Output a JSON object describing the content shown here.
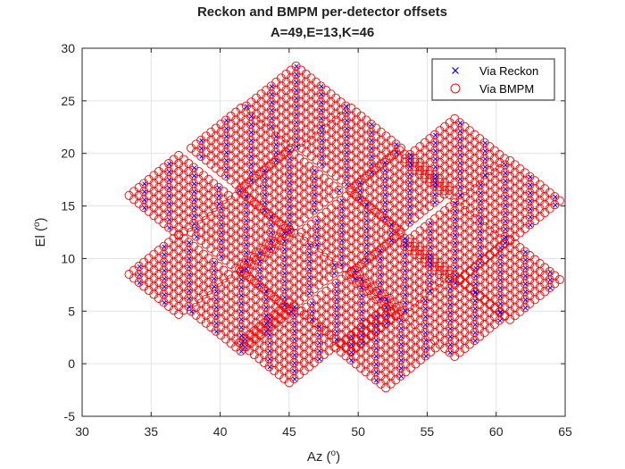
{
  "chart_data": {
    "type": "scatter",
    "title": "Reckon and BMPM per-detector offsets",
    "subtitle": "A=49,E=13,K=46",
    "xlabel": "Az (",
    "xlabel_sup": "o",
    "xlabel_tail": ")",
    "ylabel": "El (",
    "ylabel_sup": "o",
    "ylabel_tail": ")",
    "xlim": [
      30,
      65
    ],
    "ylim": [
      -5,
      30
    ],
    "xticks": [
      30,
      35,
      40,
      45,
      50,
      55,
      60,
      65
    ],
    "yticks": [
      -5,
      0,
      5,
      10,
      15,
      20,
      25,
      30
    ],
    "xtick_labels": [
      "30",
      "35",
      "40",
      "45",
      "50",
      "55",
      "60",
      "65"
    ],
    "ytick_labels": [
      "-5",
      "0",
      "5",
      "10",
      "15",
      "20",
      "25",
      "30"
    ],
    "grid": true,
    "legend_position": "top-right",
    "series": [
      {
        "name": "Via Reckon",
        "marker": "x",
        "color": "#0000ff"
      },
      {
        "name": "Via BMPM",
        "marker": "o",
        "color": "#ff0000"
      }
    ],
    "pattern": "20 diamond-shaped detector modules, each a 11x11 rotated lattice of detector offsets; BMPM and Reckon positions coincide",
    "module_centers": [
      [
        45.5,
        24.5
      ],
      [
        41.5,
        20.5
      ],
      [
        49.5,
        20.5
      ],
      [
        57.0,
        19.5
      ],
      [
        37.0,
        16.0
      ],
      [
        45.0,
        16.5
      ],
      [
        53.0,
        16.5
      ],
      [
        61.0,
        15.5
      ],
      [
        41.5,
        12.5
      ],
      [
        49.5,
        12.5
      ],
      [
        57.0,
        11.5
      ],
      [
        37.0,
        8.5
      ],
      [
        45.0,
        9.0
      ],
      [
        53.0,
        8.5
      ],
      [
        61.0,
        8.0
      ],
      [
        41.5,
        5.0
      ],
      [
        49.5,
        5.0
      ],
      [
        57.0,
        4.5
      ],
      [
        45.0,
        2.0
      ],
      [
        52.0,
        1.5
      ]
    ],
    "module_half_width_deg": 3.6,
    "module_half_height_deg": 3.8,
    "lattice_steps": 11
  }
}
